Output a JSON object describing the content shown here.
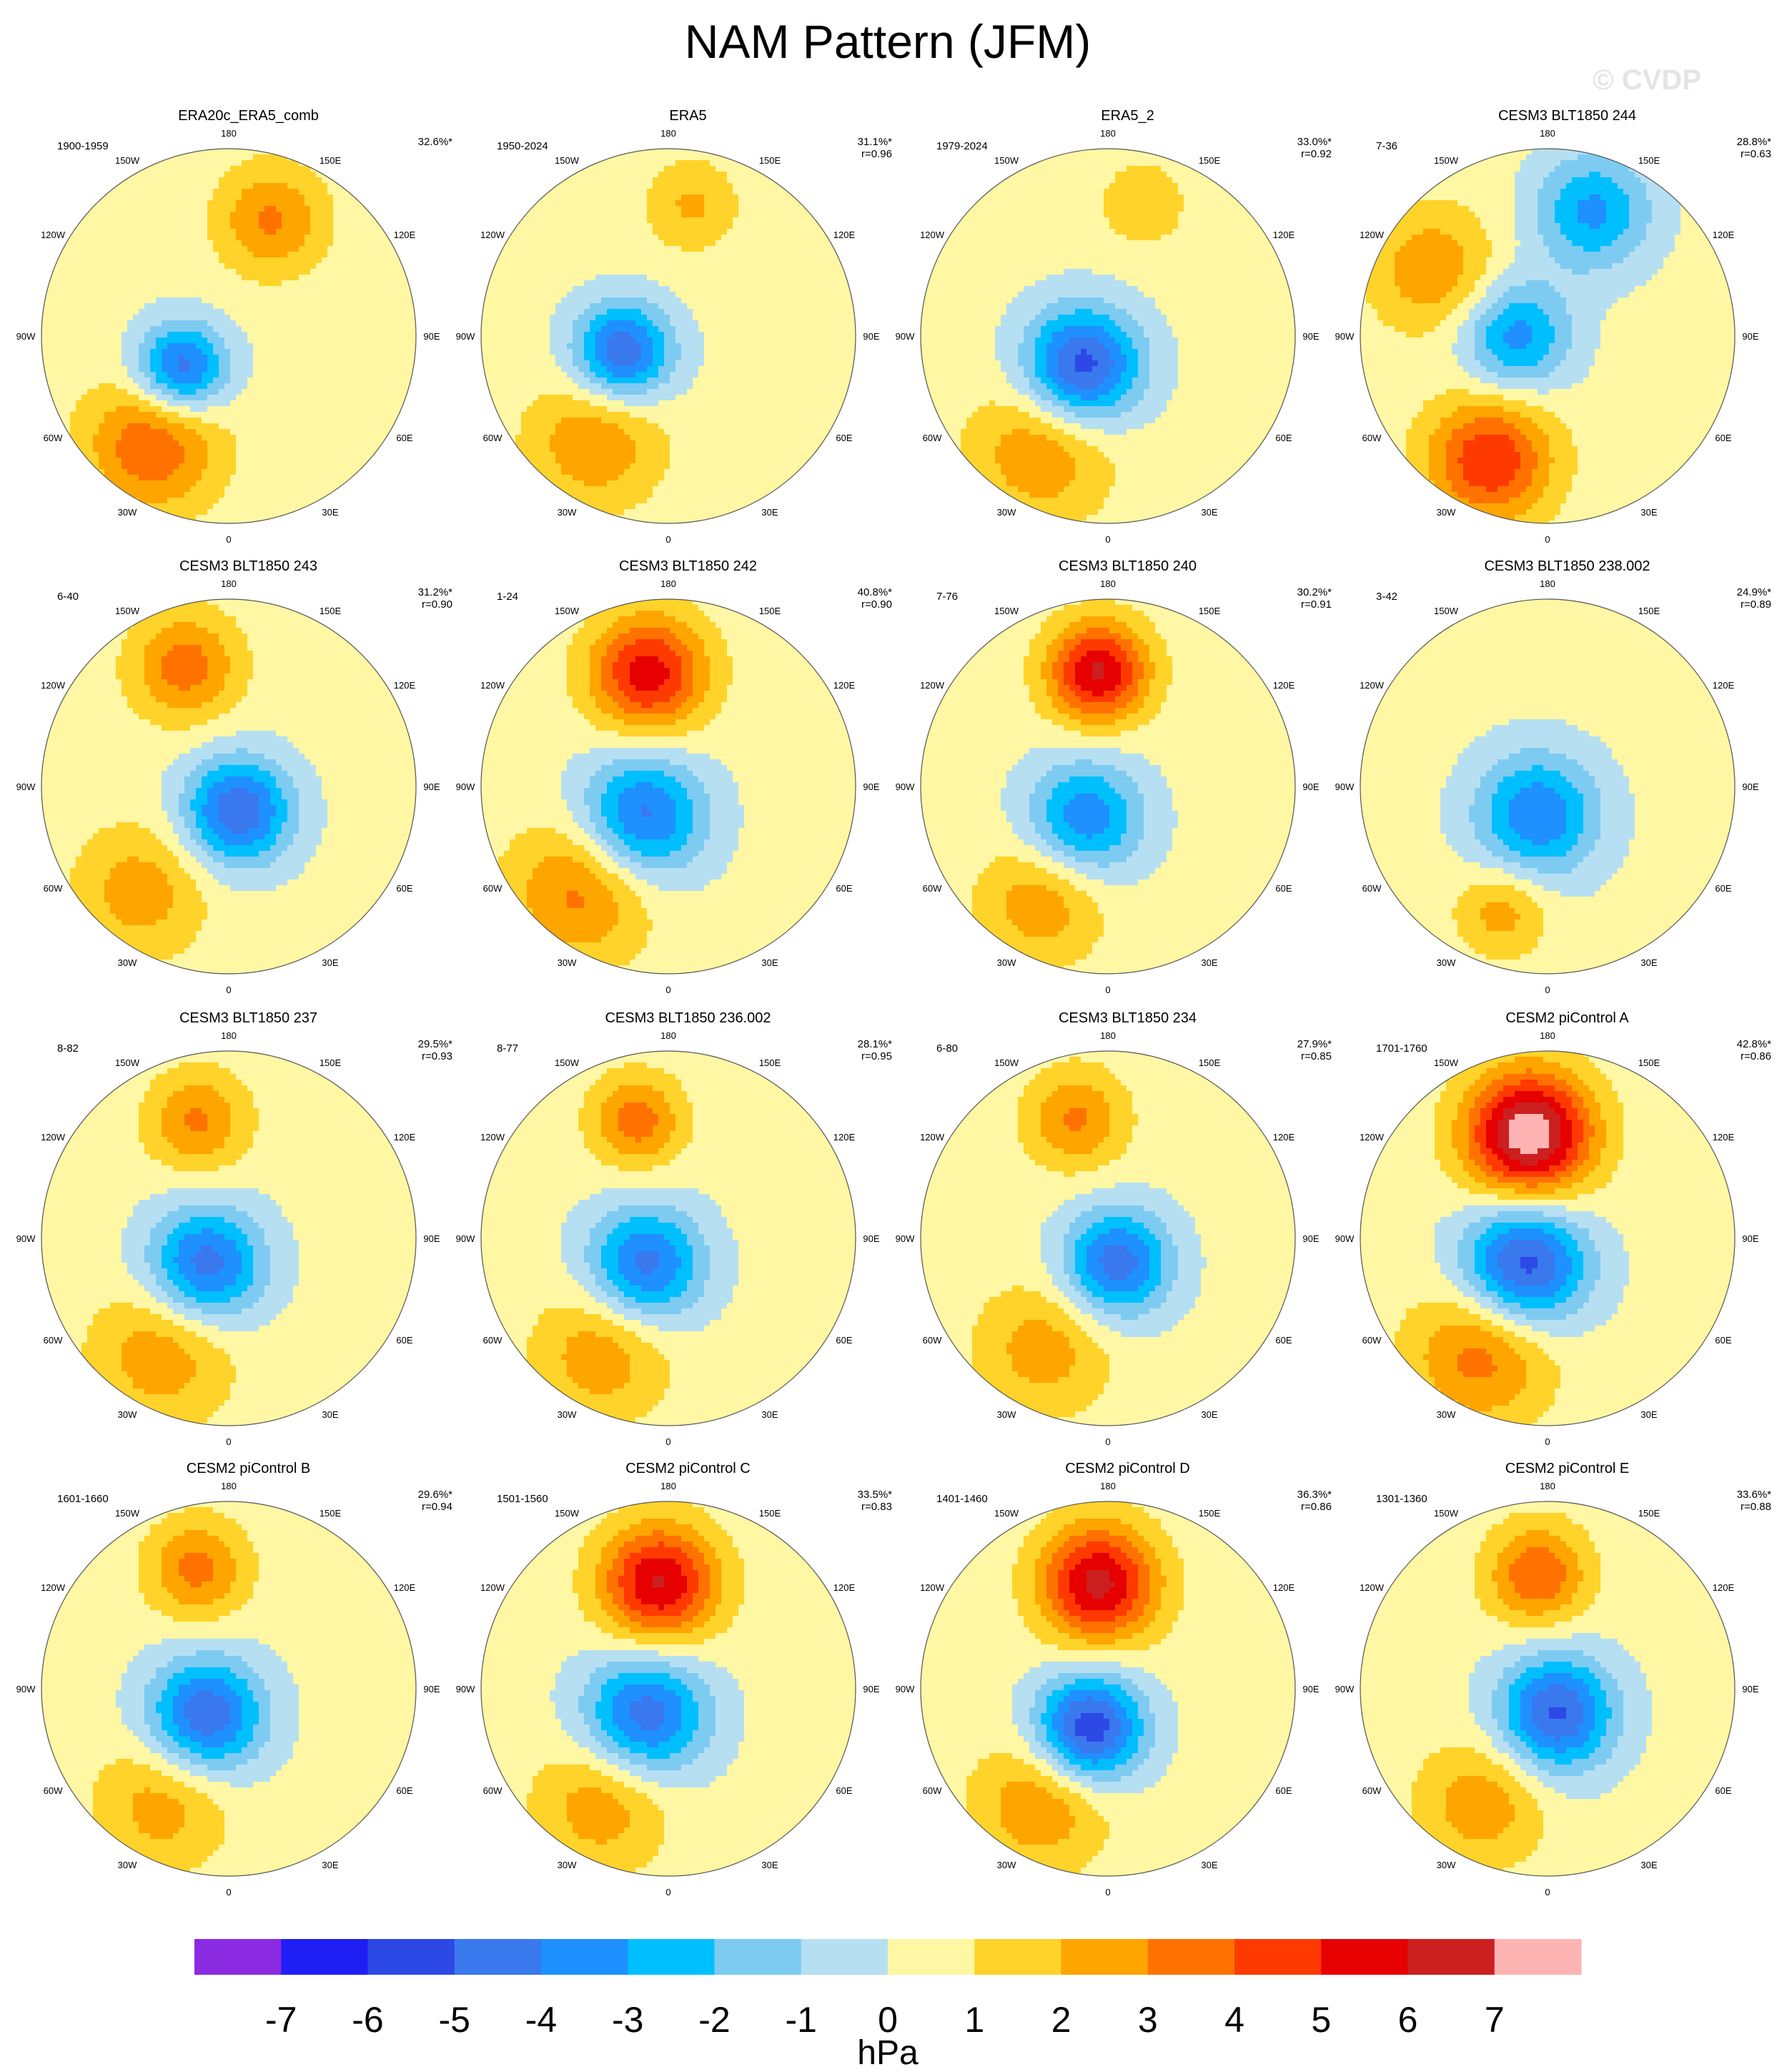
{
  "title": "NAM Pattern (JFM)",
  "watermark": "© CVDP",
  "longitude_labels": [
    "180",
    "150E",
    "120E",
    "90E",
    "60E",
    "30E",
    "0",
    "30W",
    "60W",
    "90W",
    "120W",
    "150W"
  ],
  "panels": [
    {
      "title": "ERA20c_ERA5_comb",
      "period": "1900-1959",
      "variance": "32.6%*",
      "r": "",
      "centers": [
        {
          "lon": -55,
          "colat": 26,
          "v": -5.2,
          "r": 0.11
        },
        {
          "lon": -35,
          "colat": 60,
          "v": 3.6,
          "r": 0.16
        },
        {
          "lon": 160,
          "colat": 56,
          "v": 2.8,
          "r": 0.13
        }
      ]
    },
    {
      "title": "ERA5",
      "period": "1950-2024",
      "variance": "31.1%*",
      "r": "r=0.96",
      "centers": [
        {
          "lon": -70,
          "colat": 22,
          "v": -5.3,
          "r": 0.12
        },
        {
          "lon": -35,
          "colat": 58,
          "v": 2.6,
          "r": 0.16
        },
        {
          "lon": 170,
          "colat": 60,
          "v": 1.8,
          "r": 0.11
        }
      ]
    },
    {
      "title": "ERA5_2",
      "period": "1979-2024",
      "variance": "33.0%*",
      "r": "r=0.92",
      "centers": [
        {
          "lon": -40,
          "colat": 18,
          "v": -6.0,
          "r": 0.14
        },
        {
          "lon": -30,
          "colat": 60,
          "v": 2.6,
          "r": 0.17
        },
        {
          "lon": 165,
          "colat": 62,
          "v": 1.6,
          "r": 0.1
        }
      ]
    },
    {
      "title": "CESM3 BLT1850 244",
      "period": "7-36",
      "variance": "28.8%*",
      "r": "r=0.63",
      "centers": [
        {
          "lon": -90,
          "colat": 14,
          "v": -3.8,
          "r": 0.13
        },
        {
          "lon": -25,
          "colat": 62,
          "v": 4.6,
          "r": 0.15
        },
        {
          "lon": 160,
          "colat": 60,
          "v": -3.6,
          "r": 0.14
        },
        {
          "lon": -120,
          "colat": 60,
          "v": 2.5,
          "r": 0.15
        }
      ]
    },
    {
      "title": "CESM3 BLT1850 243",
      "period": "6-40",
      "variance": "31.2%*",
      "r": "r=0.90",
      "centers": [
        {
          "lon": 20,
          "colat": 12,
          "v": -5.3,
          "r": 0.13
        },
        {
          "lon": -40,
          "colat": 62,
          "v": 2.2,
          "r": 0.16
        },
        {
          "lon": -160,
          "colat": 58,
          "v": 3.2,
          "r": 0.13
        }
      ]
    },
    {
      "title": "CESM3 BLT1850 242",
      "period": "1-24",
      "variance": "40.8%*",
      "r": "r=0.90",
      "centers": [
        {
          "lon": -40,
          "colat": 18,
          "v": -4.8,
          "r": 0.15
        },
        {
          "lon": -40,
          "colat": 62,
          "v": 3.0,
          "r": 0.17
        },
        {
          "lon": -170,
          "colat": 52,
          "v": 5.2,
          "r": 0.14
        }
      ]
    },
    {
      "title": "CESM3 BLT1850 240",
      "period": "7-76",
      "variance": "30.2%*",
      "r": "r=0.91",
      "centers": [
        {
          "lon": -35,
          "colat": 18,
          "v": -4.2,
          "r": 0.14
        },
        {
          "lon": -30,
          "colat": 60,
          "v": 2.4,
          "r": 0.15
        },
        {
          "lon": -175,
          "colat": 52,
          "v": 5.8,
          "r": 0.12
        }
      ]
    },
    {
      "title": "CESM3 BLT1850 238.002",
      "period": "3-42",
      "variance": "24.9%*",
      "r": "r=0.89",
      "centers": [
        {
          "lon": -20,
          "colat": 14,
          "v": -4.3,
          "r": 0.15
        },
        {
          "lon": -20,
          "colat": 60,
          "v": 2.2,
          "r": 0.11
        }
      ]
    },
    {
      "title": "CESM3 BLT1850 237",
      "period": "8-82",
      "variance": "29.5%*",
      "r": "r=0.93",
      "centers": [
        {
          "lon": -40,
          "colat": 16,
          "v": -5.0,
          "r": 0.14
        },
        {
          "lon": -30,
          "colat": 60,
          "v": 2.4,
          "r": 0.17
        },
        {
          "lon": -165,
          "colat": 55,
          "v": 2.8,
          "r": 0.12
        }
      ]
    },
    {
      "title": "CESM3 BLT1850 236.002",
      "period": "8-77",
      "variance": "28.1%*",
      "r": "r=0.95",
      "centers": [
        {
          "lon": -40,
          "colat": 16,
          "v": -4.8,
          "r": 0.14
        },
        {
          "lon": -30,
          "colat": 60,
          "v": 2.4,
          "r": 0.16
        },
        {
          "lon": -165,
          "colat": 55,
          "v": 3.2,
          "r": 0.11
        }
      ]
    },
    {
      "title": "CESM3 BLT1850 234",
      "period": "6-80",
      "variance": "27.9%*",
      "r": "r=0.85",
      "centers": [
        {
          "lon": 20,
          "colat": 12,
          "v": -5.0,
          "r": 0.13
        },
        {
          "lon": -30,
          "colat": 58,
          "v": 2.2,
          "r": 0.16
        },
        {
          "lon": -165,
          "colat": 56,
          "v": 2.8,
          "r": 0.12
        }
      ]
    },
    {
      "title": "CESM2 piControl A",
      "period": "1701-1760",
      "variance": "42.8%*",
      "r": "r=0.86",
      "centers": [
        {
          "lon": -40,
          "colat": 16,
          "v": -6.0,
          "r": 0.15
        },
        {
          "lon": -30,
          "colat": 60,
          "v": 3.2,
          "r": 0.17
        },
        {
          "lon": -170,
          "colat": 48,
          "v": 7.6,
          "r": 0.15
        }
      ]
    },
    {
      "title": "CESM2 piControl B",
      "period": "1601-1660",
      "variance": "29.6%*",
      "r": "r=0.94",
      "centers": [
        {
          "lon": -40,
          "colat": 16,
          "v": -5.3,
          "r": 0.14
        },
        {
          "lon": -30,
          "colat": 60,
          "v": 2.2,
          "r": 0.16
        },
        {
          "lon": -165,
          "colat": 56,
          "v": 3.0,
          "r": 0.12
        }
      ]
    },
    {
      "title": "CESM2 piControl C",
      "period": "1501-1560",
      "variance": "33.5%*",
      "r": "r=0.83",
      "centers": [
        {
          "lon": -40,
          "colat": 16,
          "v": -5.0,
          "r": 0.15
        },
        {
          "lon": -30,
          "colat": 60,
          "v": 2.4,
          "r": 0.16
        },
        {
          "lon": -175,
          "colat": 48,
          "v": 5.8,
          "r": 0.14
        }
      ]
    },
    {
      "title": "CESM2 piControl D",
      "period": "1401-1460",
      "variance": "36.3%*",
      "r": "r=0.86",
      "centers": [
        {
          "lon": -25,
          "colat": 20,
          "v": -6.3,
          "r": 0.13
        },
        {
          "lon": -30,
          "colat": 60,
          "v": 2.6,
          "r": 0.16
        },
        {
          "lon": -175,
          "colat": 48,
          "v": 6.0,
          "r": 0.14
        }
      ]
    },
    {
      "title": "CESM2 piControl E",
      "period": "1301-1360",
      "variance": "33.6%*",
      "r": "r=0.88",
      "centers": [
        {
          "lon": 20,
          "colat": 12,
          "v": -5.5,
          "r": 0.14
        },
        {
          "lon": -30,
          "colat": 60,
          "v": 2.4,
          "r": 0.15
        },
        {
          "lon": -175,
          "colat": 52,
          "v": 3.6,
          "r": 0.12
        }
      ]
    }
  ],
  "colorbar": {
    "unit": "hPa",
    "ticks": [
      "-7",
      "-6",
      "-5",
      "-4",
      "-3",
      "-2",
      "-1",
      "0",
      "1",
      "2",
      "3",
      "4",
      "5",
      "6",
      "7"
    ],
    "colors": [
      "#8a2be2",
      "#1e1ef5",
      "#2c49e6",
      "#3a78ee",
      "#1e90ff",
      "#00bfff",
      "#7ecbf2",
      "#b6dff2",
      "#fff7a3",
      "#ffd32a",
      "#ffa500",
      "#ff7200",
      "#ff3a00",
      "#e60000",
      "#cc1f1f",
      "#ffb4b4"
    ]
  }
}
